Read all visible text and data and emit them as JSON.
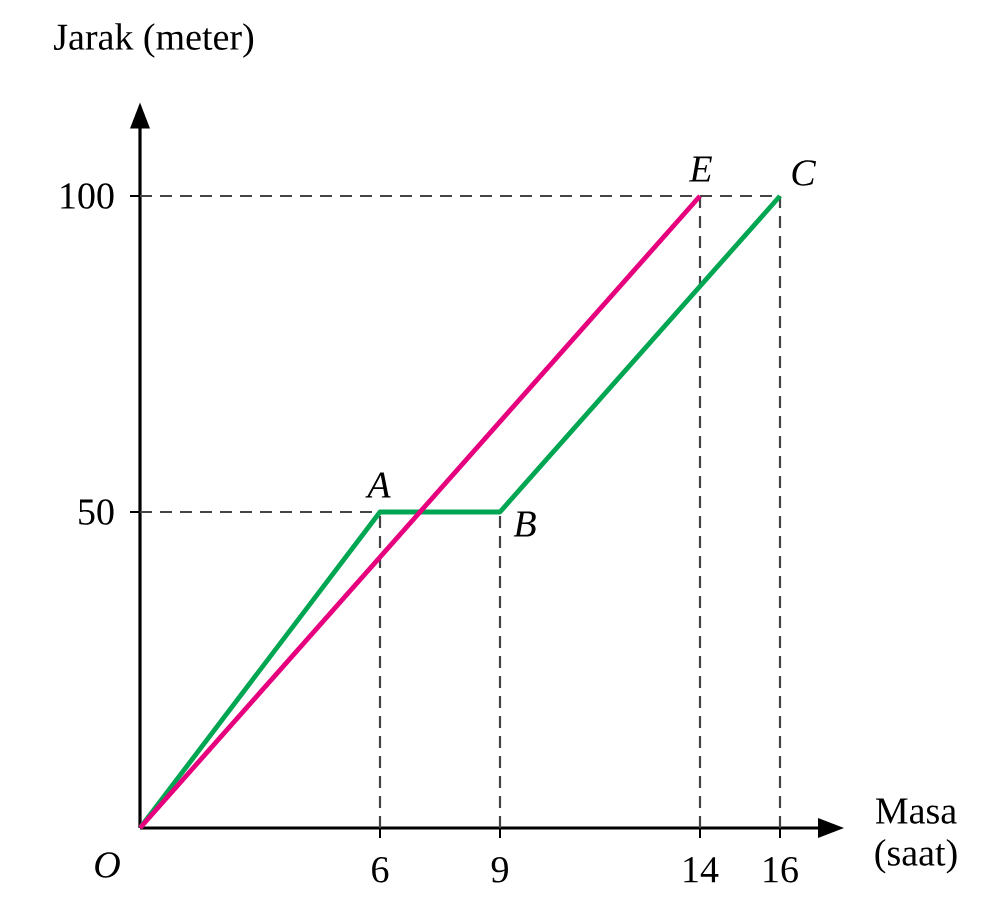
{
  "chart_data": {
    "type": "line",
    "xlabel": "Masa (saat)",
    "ylabel": "Jarak (meter)",
    "xlim": [
      0,
      17
    ],
    "ylim": [
      0,
      111
    ],
    "xticks": [
      6,
      9,
      14,
      16
    ],
    "yticks": [
      50,
      100
    ],
    "series": [
      {
        "color": "#00a651",
        "x": [
          0,
          6,
          9,
          16
        ],
        "values": [
          0,
          50,
          50,
          100
        ]
      },
      {
        "color": "#e6007e",
        "x": [
          0,
          14
        ],
        "values": [
          0,
          100
        ]
      }
    ],
    "ref_lines": [
      {
        "axis": "x",
        "value": 6,
        "color": "#444444",
        "line_style": "dashed"
      },
      {
        "axis": "x",
        "value": 9,
        "color": "#444444",
        "line_style": "dashed"
      },
      {
        "axis": "x",
        "value": 14,
        "color": "#444444",
        "line_style": "dashed"
      },
      {
        "axis": "x",
        "value": 16,
        "color": "#444444",
        "line_style": "dashed"
      },
      {
        "axis": "y",
        "value": 50,
        "color": "#444444",
        "line_style": "dashed"
      },
      {
        "axis": "y",
        "value": 100,
        "color": "#444444",
        "line_style": "dashed"
      }
    ],
    "annotations": [
      {
        "text": "O",
        "x": 0,
        "y": 0
      },
      {
        "text": "A",
        "x": 6,
        "y": 50
      },
      {
        "text": "B",
        "x": 9,
        "y": 50
      },
      {
        "text": "E",
        "x": 14,
        "y": 100
      },
      {
        "text": "C",
        "x": 16,
        "y": 100
      }
    ]
  }
}
